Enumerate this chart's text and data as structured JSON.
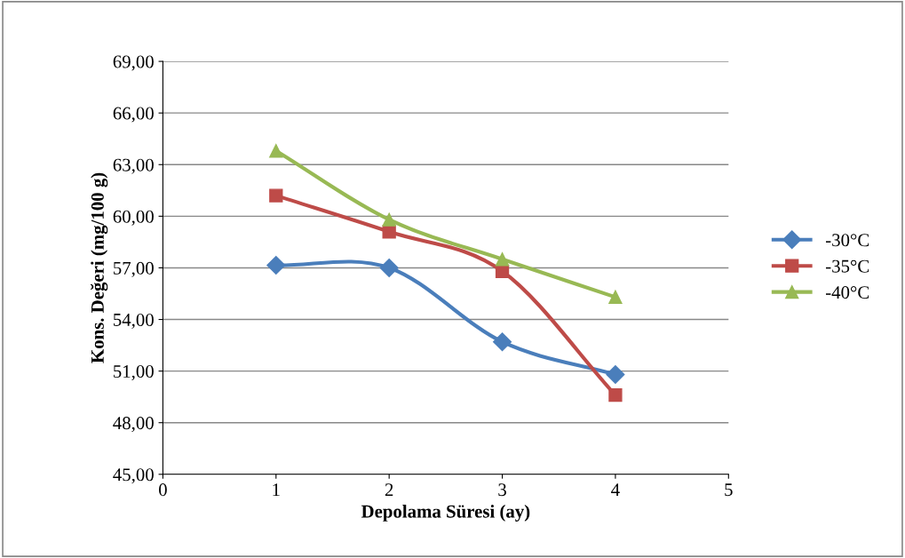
{
  "chart_data": {
    "type": "line",
    "xlabel": "Depolama Süresi (ay)",
    "ylabel": "Kons. Değeri (mg/100 g)",
    "x": [
      1,
      2,
      3,
      4
    ],
    "series": [
      {
        "name": "-30°C",
        "color": "#4a7ebb",
        "marker": "diamond",
        "values": [
          57.15,
          57.0,
          52.7,
          50.8
        ]
      },
      {
        "name": "-35°C",
        "color": "#be4b48",
        "marker": "square",
        "values": [
          61.2,
          59.1,
          56.8,
          49.6
        ]
      },
      {
        "name": "-40°C",
        "color": "#98b954",
        "marker": "triangle",
        "values": [
          63.8,
          59.8,
          57.5,
          55.3
        ]
      }
    ],
    "xlim": [
      0,
      5
    ],
    "xticks": [
      0,
      1,
      2,
      3,
      4,
      5
    ],
    "ylim": [
      45,
      69
    ],
    "yticks": [
      {
        "value": 45,
        "label": "45,00"
      },
      {
        "value": 48,
        "label": "48,00"
      },
      {
        "value": 51,
        "label": "51,00"
      },
      {
        "value": 54,
        "label": "54,00"
      },
      {
        "value": 57,
        "label": "57,00"
      },
      {
        "value": 60,
        "label": "60,00"
      },
      {
        "value": 63,
        "label": "63,00"
      },
      {
        "value": 66,
        "label": "66,00"
      },
      {
        "value": 69,
        "label": "69,00"
      }
    ],
    "grid": "y",
    "legend": "right"
  }
}
